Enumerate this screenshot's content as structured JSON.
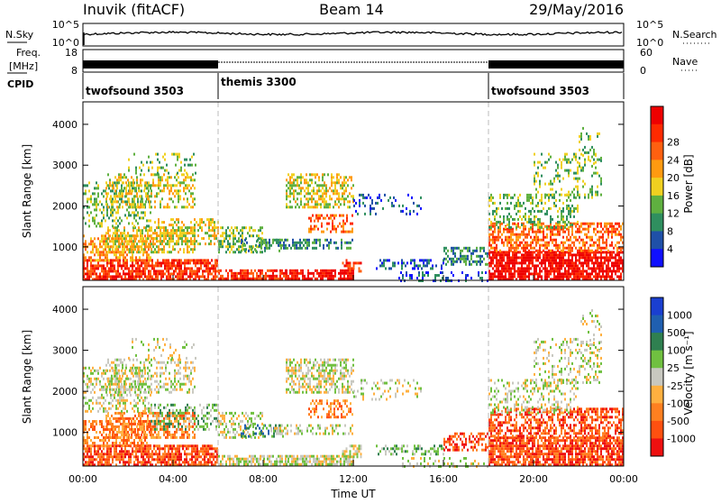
{
  "header": {
    "station": "Inuvik (fitACF)",
    "beam": "Beam 14",
    "date": "29/May/2016"
  },
  "top_panels": {
    "nsky_label": "N.Sky",
    "nsky_ticks": [
      "10^5",
      "10^0"
    ],
    "nsearch_label": "N.Search",
    "nsearch_ticks": [
      "10^5",
      "10^0"
    ],
    "freq_label_1": "Freq.",
    "freq_label_2": "[MHz]",
    "freq_ticks": [
      "18",
      "8"
    ],
    "nave_label": "Nave",
    "nave_ticks": [
      "60",
      "0"
    ],
    "cpid_label": "CPID",
    "cpid_segments": [
      {
        "name": "twofsound 3503",
        "start": 0,
        "end": 6
      },
      {
        "name": "themis 3300",
        "start": 6,
        "end": 18
      },
      {
        "name": "twofsound 3503",
        "start": 18,
        "end": 24
      }
    ]
  },
  "chart_data": [
    {
      "type": "heatmap",
      "quantity": "power",
      "ylabel": "Slant Range [km]",
      "ylim": [
        180,
        4550
      ],
      "yticks": [
        "1000",
        "2000",
        "3000",
        "4000"
      ],
      "xlim": [
        0,
        24
      ],
      "colorbar_label": "Power [dB]",
      "colorbar_ticks": [
        "4",
        "8",
        "12",
        "16",
        "20",
        "24",
        "28"
      ],
      "colorbar_colors": [
        "#1010ff",
        "#1f50a8",
        "#2f8f5f",
        "#5fb040",
        "#f0d020",
        "#ff9a10",
        "#ff6010",
        "#ff2a00",
        "#ee0000"
      ]
    },
    {
      "type": "heatmap",
      "quantity": "velocity",
      "ylabel": "Slant Range [km]",
      "xlabel": "Time UT",
      "ylim": [
        180,
        4550
      ],
      "yticks": [
        "1000",
        "2000",
        "3000",
        "4000"
      ],
      "xlim": [
        0,
        24
      ],
      "xticks": [
        "00:00",
        "04:00",
        "08:00",
        "12:00",
        "16:00",
        "20:00",
        "00:00"
      ],
      "colorbar_label": "Velocity [m s⁻¹]",
      "colorbar_ticks": [
        "1000",
        "500",
        "100",
        "25",
        "-25",
        "-100",
        "-500",
        "-1000"
      ],
      "colorbar_colors": [
        "#1a3fd0",
        "#1f5fb0",
        "#2f8050",
        "#70c040",
        "#c8c8c0",
        "#ffb040",
        "#ff8020",
        "#ff5010",
        "#ee1010"
      ]
    }
  ]
}
